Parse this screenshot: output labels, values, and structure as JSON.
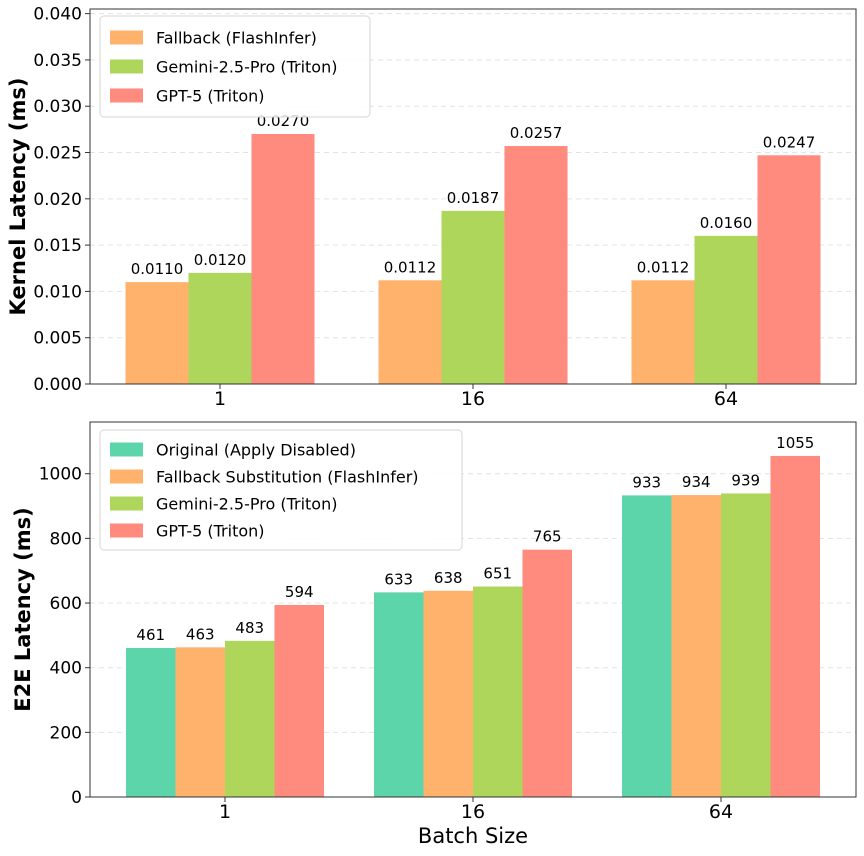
{
  "chart_data": [
    {
      "type": "bar",
      "title": "",
      "xlabel": "",
      "ylabel": "Kernel Latency (ms)",
      "categories": [
        "1",
        "16",
        "64"
      ],
      "ylim": [
        0,
        0.0405
      ],
      "yticks": [
        "0.000",
        "0.005",
        "0.010",
        "0.015",
        "0.020",
        "0.025",
        "0.030",
        "0.035",
        "0.040"
      ],
      "ytick_values": [
        0,
        0.005,
        0.01,
        0.015,
        0.02,
        0.025,
        0.03,
        0.035,
        0.04
      ],
      "grid": true,
      "legend": "top-left",
      "series": [
        {
          "name": "Fallback (FlashInfer)",
          "color": "#FFB26B",
          "values": [
            0.011,
            0.0112,
            0.0112
          ],
          "labels": [
            "0.0110",
            "0.0112",
            "0.0112"
          ]
        },
        {
          "name": "Gemini-2.5-Pro (Triton)",
          "color": "#ADD65A",
          "values": [
            0.012,
            0.0187,
            0.016
          ],
          "labels": [
            "0.0120",
            "0.0187",
            "0.0160"
          ]
        },
        {
          "name": "GPT-5 (Triton)",
          "color": "#FF8A7E",
          "values": [
            0.027,
            0.0257,
            0.0247
          ],
          "labels": [
            "0.0270",
            "0.0257",
            "0.0247"
          ]
        }
      ]
    },
    {
      "type": "bar",
      "title": "",
      "xlabel": "Batch Size",
      "ylabel": "E2E Latency (ms)",
      "categories": [
        "1",
        "16",
        "64"
      ],
      "ylim": [
        0,
        1160
      ],
      "yticks": [
        "0",
        "200",
        "400",
        "600",
        "800",
        "1000"
      ],
      "ytick_values": [
        0,
        200,
        400,
        600,
        800,
        1000
      ],
      "grid": true,
      "legend": "top-left",
      "series": [
        {
          "name": "Original (Apply Disabled)",
          "color": "#5DD5AA",
          "values": [
            461,
            633,
            933
          ],
          "labels": [
            "461",
            "633",
            "933"
          ]
        },
        {
          "name": "Fallback Substitution (FlashInfer)",
          "color": "#FFB26B",
          "values": [
            463,
            638,
            934
          ],
          "labels": [
            "463",
            "638",
            "934"
          ]
        },
        {
          "name": "Gemini-2.5-Pro (Triton)",
          "color": "#ADD65A",
          "values": [
            483,
            651,
            939
          ],
          "labels": [
            "483",
            "651",
            "939"
          ]
        },
        {
          "name": "GPT-5 (Triton)",
          "color": "#FF8A7E",
          "values": [
            594,
            765,
            1055
          ],
          "labels": [
            "594",
            "765",
            "1055"
          ]
        }
      ]
    }
  ]
}
